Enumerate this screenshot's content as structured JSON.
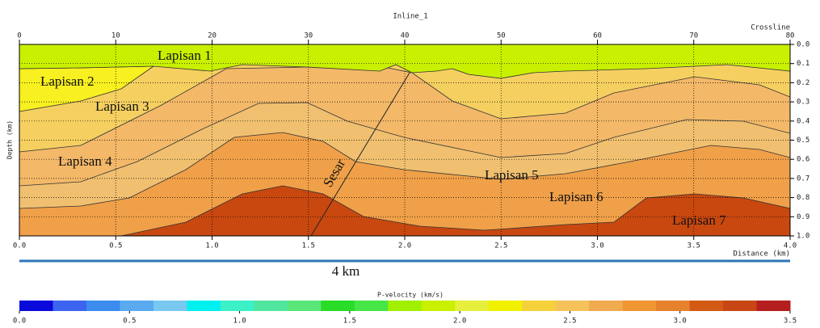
{
  "chart_data": {
    "type": "velocity-section",
    "title": "Inline_1",
    "x2label": "Crossline",
    "x2lim": [
      0,
      80
    ],
    "x2ticks": [
      0,
      10,
      20,
      30,
      40,
      50,
      60,
      70,
      80
    ],
    "xlabel": "Distance (km)",
    "xlim": [
      0,
      4
    ],
    "xticks": [
      {
        "value": 0,
        "label": "0.0"
      },
      0.5,
      {
        "value": 1,
        "label": "1.0"
      },
      1.5,
      {
        "value": 2,
        "label": "2.0"
      },
      2.5,
      {
        "value": 3,
        "label": "3.0"
      },
      3.5,
      {
        "value": 4,
        "label": "4.0"
      }
    ],
    "ylabel": "Depth (km)",
    "ylim": [
      0,
      1
    ],
    "yticks": [
      {
        "value": 0,
        "label": "0.0"
      },
      0.1,
      0.2,
      0.3,
      0.4,
      0.5,
      0.6,
      0.7,
      0.8,
      0.9,
      {
        "value": 1,
        "label": "1.0"
      }
    ],
    "grid": true,
    "colorbar_label": "P-velocity (km/s)",
    "clim": [
      0,
      3.5
    ],
    "cticks": [
      {
        "value": 0,
        "label": "0.0"
      },
      0.5,
      {
        "value": 1,
        "label": "1.0"
      },
      1.5,
      {
        "value": 2,
        "label": "2.0"
      },
      2.5,
      {
        "value": 3,
        "label": "3.0"
      },
      3.5
    ],
    "colormap": [
      "#0a0adc",
      "#3c64f0",
      "#3c8cf0",
      "#5aaaf0",
      "#78c8f0",
      "#00f0f0",
      "#3cf0c8",
      "#50e6a0",
      "#5ae678",
      "#28dc28",
      "#46e646",
      "#a0f000",
      "#c8f000",
      "#e6f03c",
      "#f0f000",
      "#f5d23c",
      "#f5c35a",
      "#f0aa50",
      "#f09632",
      "#e6822d",
      "#d25a14",
      "#c84614",
      "#b41e1e"
    ],
    "annotations": [
      "Lapisan 1",
      "Lapisan 2",
      "Lapisan 3",
      "Lapisan 4",
      "Sesar",
      "Lapisan 5",
      "Lapisan 6",
      "Lapisan 7"
    ],
    "scale_bar": "4 km"
  }
}
